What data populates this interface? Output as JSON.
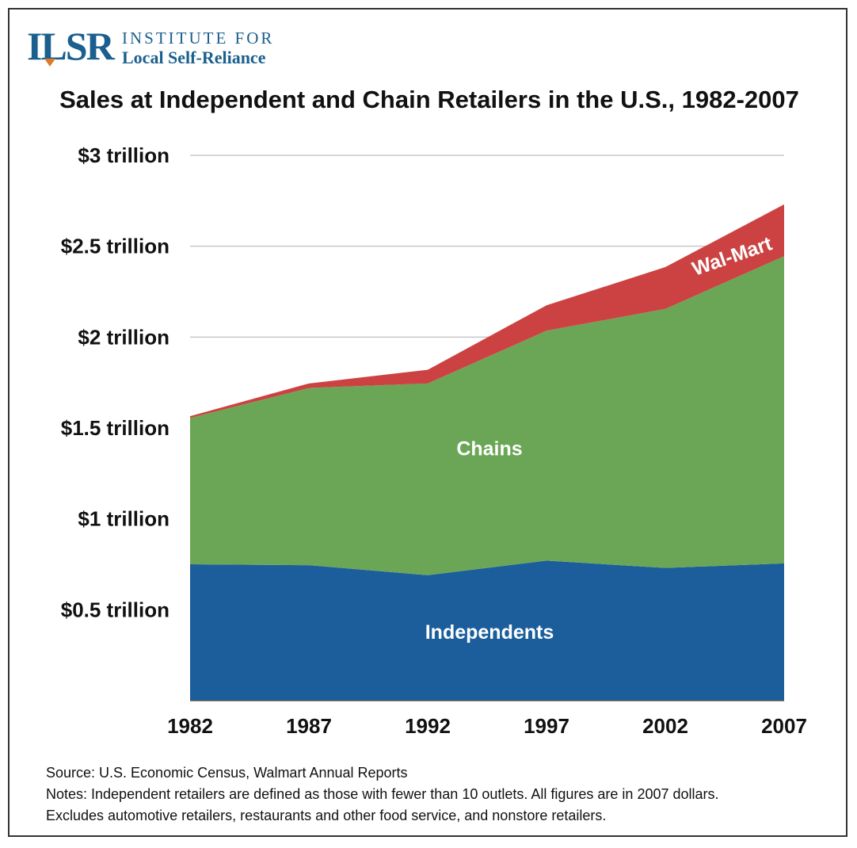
{
  "logo": {
    "mark": "ILSR",
    "line1": "INSTITUTE FOR",
    "line2": "Local Self-Reliance"
  },
  "chart_data": {
    "type": "area",
    "stacked": true,
    "title": "Sales at Independent and Chain Retailers in the U.S., 1982-2007",
    "x": [
      1982,
      1987,
      1992,
      1997,
      2002,
      2007
    ],
    "x_tick_labels": [
      "1982",
      "1987",
      "1992",
      "1997",
      "2002",
      "2007"
    ],
    "ylim": [
      0,
      3
    ],
    "y_ticks": [
      {
        "value": 0.5,
        "label": "$0.5 trillion"
      },
      {
        "value": 1,
        "label": "$1 trillion"
      },
      {
        "value": 1.5,
        "label": "$1.5 trillion"
      },
      {
        "value": 2,
        "label": "$2 trillion"
      },
      {
        "value": 2.5,
        "label": "$2.5 trillion"
      },
      {
        "value": 3,
        "label": "$3 trillion"
      }
    ],
    "grid": true,
    "series": [
      {
        "name": "Independents",
        "values": [
          0.75,
          0.745,
          0.69,
          0.77,
          0.73,
          0.755
        ],
        "color": "#1b5e9b"
      },
      {
        "name": "Chains",
        "values": [
          0.805,
          0.975,
          1.055,
          1.265,
          1.425,
          1.69
        ],
        "color": "#6ba656"
      },
      {
        "name": "Wal-Mart",
        "values": [
          0.01,
          0.025,
          0.075,
          0.14,
          0.23,
          0.285
        ],
        "color": "#cc4242"
      }
    ],
    "annotations": [
      {
        "text": "Independents",
        "series": "Independents"
      },
      {
        "text": "Chains",
        "series": "Chains"
      },
      {
        "text": "Wal-Mart",
        "series": "Wal-Mart"
      }
    ]
  },
  "footer": {
    "source": "Source: U.S. Economic Census, Walmart Annual Reports",
    "notes1": "Notes: Independent retailers are defined as those with fewer than 10 outlets.  All figures are in 2007 dollars.",
    "notes2": "Excludes automotive retailers, restaurants and other food service, and nonstore retailers."
  }
}
